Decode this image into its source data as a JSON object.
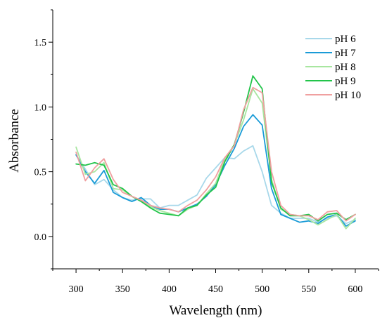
{
  "chart_data": {
    "type": "line",
    "title": "",
    "xlabel": "Wavelength (nm)",
    "ylabel": "Absorbance",
    "xlim": [
      275,
      625
    ],
    "ylim": [
      -0.25,
      1.75
    ],
    "xticks": [
      300,
      350,
      400,
      450,
      500,
      550,
      600
    ],
    "xtick_labels": [
      "300",
      "350",
      "400",
      "450",
      "500",
      "550",
      "600"
    ],
    "yticks": [
      0.0,
      0.5,
      1.0,
      1.5
    ],
    "ytick_labels": [
      "0.0",
      "0.5",
      "1.0",
      "1.5"
    ],
    "grid": false,
    "legend_position": "top-right",
    "x": [
      300,
      310,
      320,
      330,
      340,
      350,
      360,
      370,
      380,
      390,
      400,
      410,
      420,
      430,
      440,
      450,
      460,
      470,
      480,
      490,
      500,
      510,
      520,
      530,
      540,
      550,
      560,
      570,
      580,
      590,
      600
    ],
    "series": [
      {
        "name": "pH 6",
        "color": "#a8d8ea",
        "values": [
          0.63,
          0.52,
          0.4,
          0.44,
          0.36,
          0.3,
          0.28,
          0.29,
          0.29,
          0.22,
          0.24,
          0.24,
          0.28,
          0.32,
          0.45,
          0.53,
          0.61,
          0.6,
          0.66,
          0.7,
          0.5,
          0.24,
          0.18,
          0.14,
          0.14,
          0.14,
          0.11,
          0.14,
          0.16,
          0.1,
          0.13
        ]
      },
      {
        "name": "pH 7",
        "color": "#1a9bd7",
        "values": [
          0.63,
          0.5,
          0.41,
          0.51,
          0.34,
          0.3,
          0.27,
          0.3,
          0.24,
          0.21,
          0.21,
          0.19,
          0.22,
          0.25,
          0.31,
          0.4,
          0.55,
          0.68,
          0.85,
          0.94,
          0.86,
          0.37,
          0.17,
          0.14,
          0.11,
          0.12,
          0.1,
          0.15,
          0.17,
          0.08,
          0.12
        ]
      },
      {
        "name": "pH 8",
        "color": "#a8e6a0",
        "values": [
          0.69,
          0.48,
          0.5,
          0.57,
          0.37,
          0.36,
          0.31,
          0.28,
          0.23,
          0.2,
          0.18,
          0.16,
          0.21,
          0.24,
          0.33,
          0.41,
          0.6,
          0.71,
          0.9,
          1.14,
          1.03,
          0.44,
          0.21,
          0.17,
          0.16,
          0.13,
          0.09,
          0.13,
          0.17,
          0.06,
          0.14
        ]
      },
      {
        "name": "pH 9",
        "color": "#22c44a",
        "values": [
          0.56,
          0.55,
          0.57,
          0.55,
          0.4,
          0.37,
          0.31,
          0.27,
          0.22,
          0.18,
          0.17,
          0.16,
          0.22,
          0.24,
          0.32,
          0.38,
          0.58,
          0.71,
          0.96,
          1.24,
          1.14,
          0.42,
          0.22,
          0.16,
          0.16,
          0.17,
          0.12,
          0.17,
          0.18,
          0.13,
          0.17
        ]
      },
      {
        "name": "pH 10",
        "color": "#f0a0a0",
        "values": [
          0.65,
          0.43,
          0.53,
          0.6,
          0.44,
          0.34,
          0.31,
          0.28,
          0.24,
          0.22,
          0.21,
          0.19,
          0.24,
          0.28,
          0.36,
          0.46,
          0.61,
          0.7,
          0.98,
          1.15,
          1.11,
          0.5,
          0.24,
          0.17,
          0.16,
          0.16,
          0.13,
          0.19,
          0.2,
          0.12,
          0.17
        ]
      }
    ]
  }
}
